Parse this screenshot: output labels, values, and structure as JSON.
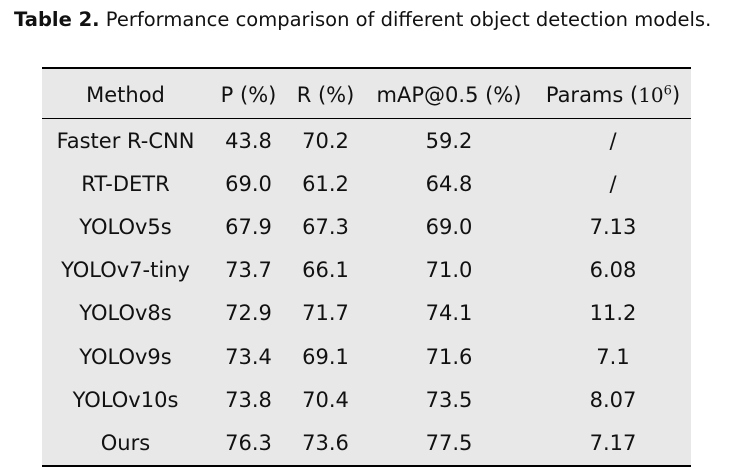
{
  "caption": {
    "label": "Table 2.",
    "text": "Performance comparison of different object detection models."
  },
  "table": {
    "headers": [
      "Method",
      "P (%)",
      "R (%)",
      "mAP@0.5 (%)",
      "Params ("
    ],
    "params_unit": {
      "base": "10",
      "exp": "6",
      "close": ")"
    },
    "rows": [
      [
        "Faster R-CNN",
        "43.8",
        "70.2",
        "59.2",
        "/"
      ],
      [
        "RT-DETR",
        "69.0",
        "61.2",
        "64.8",
        "/"
      ],
      [
        "YOLOv5s",
        "67.9",
        "67.3",
        "69.0",
        "7.13"
      ],
      [
        "YOLOv7-tiny",
        "73.7",
        "66.1",
        "71.0",
        "6.08"
      ],
      [
        "YOLOv8s",
        "72.9",
        "71.7",
        "74.1",
        "11.2"
      ],
      [
        "YOLOv9s",
        "73.4",
        "69.1",
        "71.6",
        "7.1"
      ],
      [
        "YOLOv10s",
        "73.8",
        "70.4",
        "73.5",
        "8.07"
      ],
      [
        "Ours",
        "76.3",
        "73.6",
        "77.5",
        "7.17"
      ]
    ]
  }
}
